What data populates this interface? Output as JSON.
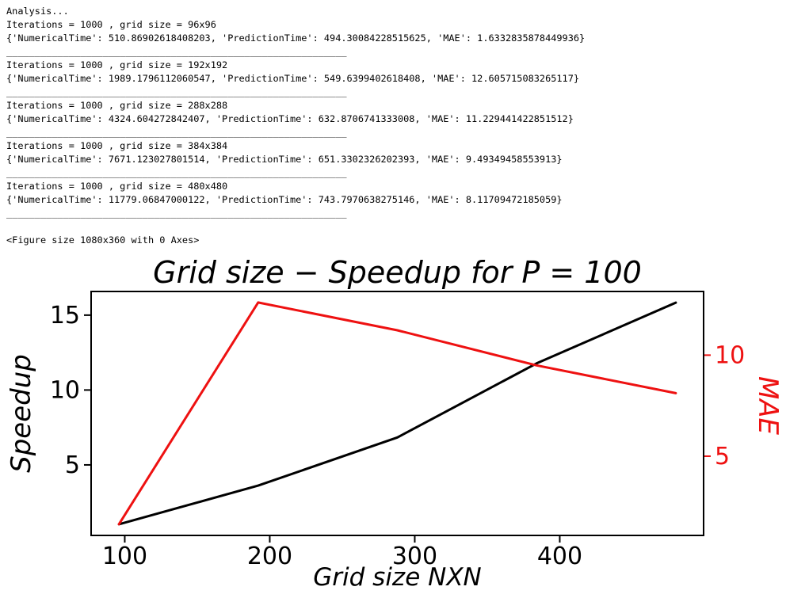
{
  "console": {
    "lines": [
      "Analysis...",
      "Iterations = 1000 , grid size = 96x96",
      "{'NumericalTime': 510.86902618408203, 'PredictionTime': 494.30084228515625, 'MAE': 1.6332835878449936}",
      "____________________________________________________________",
      "Iterations = 1000 , grid size = 192x192",
      "{'NumericalTime': 1989.1796112060547, 'PredictionTime': 549.6399402618408, 'MAE': 12.605715083265117}",
      "____________________________________________________________",
      "Iterations = 1000 , grid size = 288x288",
      "{'NumericalTime': 4324.604272842407, 'PredictionTime': 632.8706741333008, 'MAE': 11.229441422851512}",
      "____________________________________________________________",
      "Iterations = 1000 , grid size = 384x384",
      "{'NumericalTime': 7671.123027801514, 'PredictionTime': 651.3302326202393, 'MAE': 9.49349458553913}",
      "____________________________________________________________",
      "Iterations = 1000 , grid size = 480x480",
      "{'NumericalTime': 11779.06847000122, 'PredictionTime': 743.7970638275146, 'MAE': 8.11709472185059}",
      "____________________________________________________________",
      "",
      "<Figure size 1080x360 with 0 Axes>"
    ]
  },
  "chart_data": {
    "type": "line",
    "title": "Grid size − Speedup for P = 100",
    "xlabel": "Grid size NXN",
    "x": [
      96,
      192,
      288,
      384,
      480
    ],
    "xlim": [
      76.8,
      499.2
    ],
    "xticks": [
      100,
      200,
      300,
      400
    ],
    "left_axis": {
      "label": "Speedup",
      "lim": [
        0.29,
        16.58
      ],
      "ticks": [
        5,
        10,
        15
      ],
      "color": "#000000"
    },
    "right_axis": {
      "label": "MAE",
      "lim": [
        1.08,
        13.15
      ],
      "ticks": [
        5,
        10
      ],
      "color": "#ee1111"
    },
    "series": [
      {
        "name": "Speedup",
        "axis": "left",
        "color": "#000000",
        "values": [
          1.034,
          3.619,
          6.833,
          11.778,
          15.836
        ]
      },
      {
        "name": "MAE",
        "axis": "right",
        "color": "#ee1111",
        "values": [
          1.6332835878449936,
          12.605715083265117,
          11.229441422851512,
          9.49349458553913,
          8.11709472185059
        ]
      }
    ],
    "grid": false,
    "legend": "none"
  }
}
